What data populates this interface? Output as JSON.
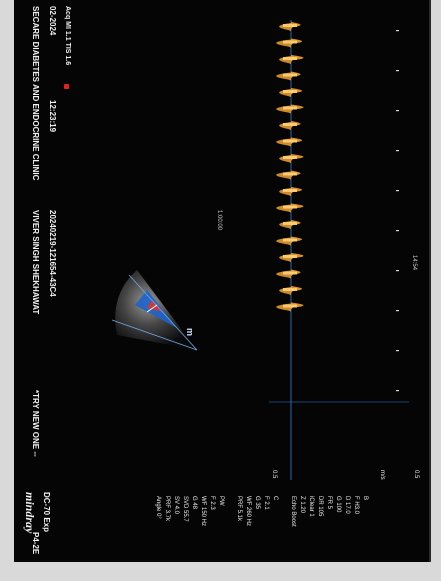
{
  "header": {
    "clinic": "SECARE DIABETES AND ENDOCRINE CLINIC",
    "patient": "VIVER SINGH SHEKHAWAT",
    "patient_id": "20240219-121654-43C4",
    "tag": "*TRY NEW ONE --",
    "date": "02-2024",
    "time": "12:23:19",
    "mode": "P4-2E",
    "brand": "mindray",
    "model": "DC-70 Exp",
    "footer_small": "Acq MI 1.1 TIS 1.6"
  },
  "params": [
    "B",
    "F H3.0",
    "D 17.0",
    "G 100",
    "FR 5",
    "DR 105",
    "iClear 1",
    "Z 1.20",
    "Echo Boost",
    "",
    "C",
    "F 2.1",
    "G 35",
    "WF 260 Hz",
    "PRF 5.1k",
    "",
    "PW",
    "F 2.3",
    "WF 150 Hz",
    "G 48",
    "SVD 55.7",
    "SV 4.0",
    "PRF 3.7k",
    "Angle 0°"
  ],
  "scale": {
    "top_left": "0.5",
    "top_right": "0.5",
    "unit": "m/s",
    "sweep": "14:54",
    "depth": "1:00:00"
  },
  "colors": {
    "background": "#050505",
    "doppler": "#f2a130",
    "baseline": "#2f7fd6",
    "marker": "#e8201d"
  }
}
